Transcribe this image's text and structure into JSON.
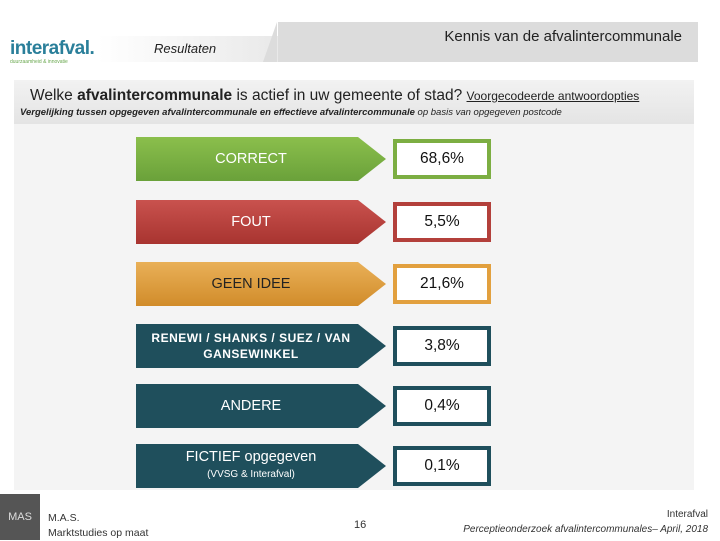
{
  "header": {
    "logo_text": "interafval.",
    "logo_tagline": "duurzaamheid & innovatie",
    "section": "Resultaten",
    "title": "Kennis van de afvalintercommunale"
  },
  "question": {
    "part1": "Welke ",
    "bold": "afvalintercommunale",
    "part2": " is actief in uw gemeente of stad? ",
    "link": "Voorgecodeerde antwoordopties",
    "sub_bold": "Vergelijking tussen opgegeven afvalintercommunale en effectieve afvalintercommunale",
    "sub_rest": " op basis van opgegeven postcode"
  },
  "rows": [
    {
      "label": "CORRECT",
      "value": "68,6%"
    },
    {
      "label": "FOUT",
      "value": "5,5%"
    },
    {
      "label": "GEEN IDEE",
      "value": "21,6%"
    },
    {
      "label": "RENEWI / SHANKS / SUEZ / VAN GANSEWINKEL",
      "value": "3,8%"
    },
    {
      "label": "ANDERE",
      "value": "0,4%"
    },
    {
      "label": "FICTIEF opgegeven",
      "sublabel": "(VVSG & Interafval)",
      "value": "0,1%"
    }
  ],
  "footer": {
    "mas": "MAS",
    "org_line1": "M.A.S.",
    "org_line2": "Marktstudies op maat",
    "page": "16",
    "right_line1": "Interafval",
    "right_line2": "Perceptieonderzoek afvalintercommunales– April, 2018"
  },
  "colors": {
    "correct": "#7cae42",
    "fout": "#b3403b",
    "geen_idee": "#e2a03e",
    "dark": "#1f4f5c"
  }
}
